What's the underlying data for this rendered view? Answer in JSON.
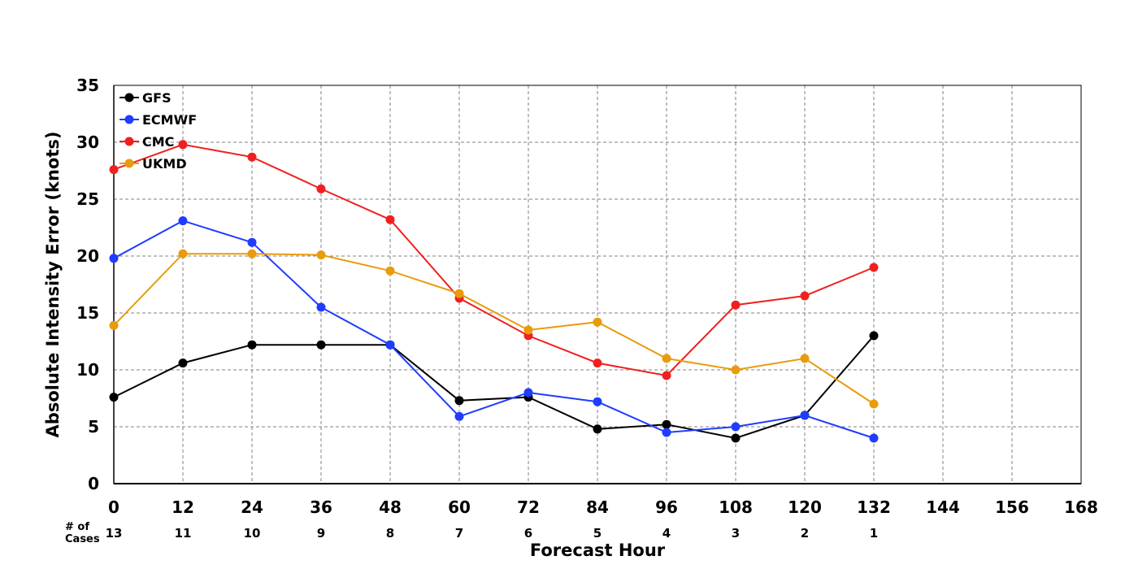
{
  "chart_data": {
    "type": "line",
    "title": "",
    "xlabel": "Forecast Hour",
    "ylabel": "Absolute Intensity Error (knots)",
    "xlim": [
      0,
      168
    ],
    "ylim": [
      0,
      35
    ],
    "x_ticks": [
      0,
      12,
      24,
      36,
      48,
      60,
      72,
      84,
      96,
      108,
      120,
      132,
      144,
      156,
      168
    ],
    "y_ticks": [
      0,
      5,
      10,
      15,
      20,
      25,
      30,
      35
    ],
    "grid": true,
    "legend_position": "top-left",
    "cases_label": [
      "# of",
      "Cases"
    ],
    "cases": [
      13,
      11,
      10,
      9,
      8,
      7,
      6,
      5,
      4,
      3,
      2,
      1
    ],
    "x": [
      0,
      12,
      24,
      36,
      48,
      60,
      72,
      84,
      96,
      108,
      120,
      132
    ],
    "series": [
      {
        "name": "GFS",
        "color": "#000000",
        "values": [
          7.6,
          10.6,
          12.2,
          12.2,
          12.2,
          7.3,
          7.6,
          4.8,
          5.2,
          4.0,
          6.0,
          13.0
        ]
      },
      {
        "name": "ECMWF",
        "color": "#1f3cff",
        "values": [
          19.8,
          23.1,
          21.2,
          15.5,
          12.2,
          5.9,
          8.0,
          7.2,
          4.5,
          5.0,
          6.0,
          4.0
        ]
      },
      {
        "name": "CMC",
        "color": "#f02020",
        "values": [
          27.6,
          29.8,
          28.7,
          25.9,
          23.2,
          16.3,
          13.0,
          10.6,
          9.5,
          15.7,
          16.5,
          19.0
        ]
      },
      {
        "name": "UKMD",
        "color": "#e89c0c",
        "values": [
          13.9,
          20.2,
          20.2,
          20.1,
          18.7,
          16.7,
          13.5,
          14.2,
          11.0,
          10.0,
          11.0,
          7.0
        ]
      }
    ]
  }
}
